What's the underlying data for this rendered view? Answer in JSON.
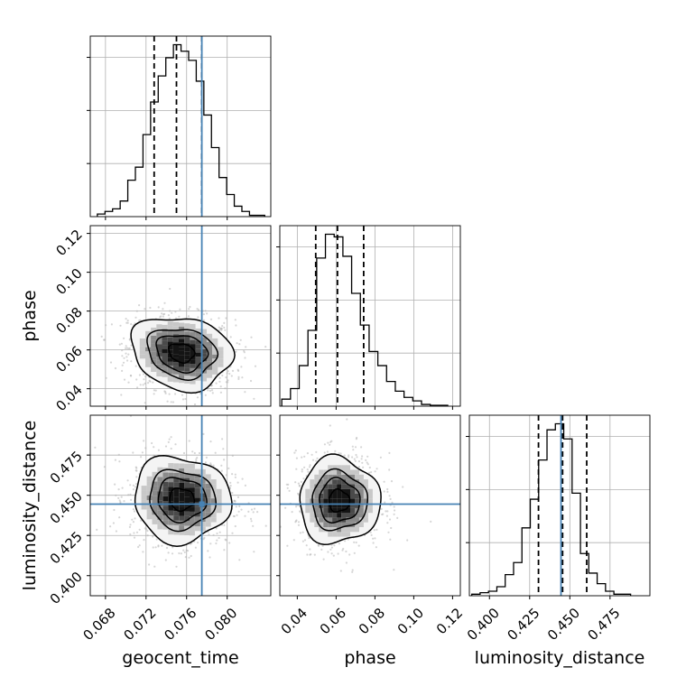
{
  "chart_data": {
    "type": "corner",
    "title": "",
    "parameters": [
      "geocent_time",
      "phase",
      "luminosity_distance"
    ],
    "ranges": {
      "geocent_time": [
        0.0665,
        0.0843
      ],
      "phase": [
        0.031,
        0.124
      ],
      "luminosity_distance": [
        0.3875,
        0.4998
      ]
    },
    "ticks": {
      "geocent_time": [
        "0.068",
        "0.072",
        "0.076",
        "0.080"
      ],
      "phase": [
        "0.04",
        "0.06",
        "0.08",
        "0.10",
        "0.12"
      ],
      "luminosity_distance": [
        "0.400",
        "0.425",
        "0.450",
        "0.475"
      ]
    },
    "truths": {
      "geocent_time": 0.0775,
      "phase": null,
      "luminosity_distance": 0.4445
    },
    "quantiles": {
      "geocent_time": [
        0.0728,
        0.075,
        0.0775
      ],
      "phase": [
        0.0495,
        0.0607,
        0.0742
      ],
      "luminosity_distance": [
        0.4305,
        0.4455,
        0.4605
      ]
    },
    "histograms": {
      "geocent_time": {
        "start": 0.0672,
        "bin_width": 0.00075,
        "counts": [
          2,
          4,
          6,
          12,
          28,
          38,
          63,
          88,
          108,
          122,
          132,
          127,
          120,
          104,
          78,
          53,
          30,
          17,
          8,
          4,
          1,
          1
        ]
      },
      "phase": {
        "start": 0.032,
        "bin_width": 0.0045,
        "counts": [
          8,
          20,
          46,
          86,
          168,
          195,
          192,
          170,
          128,
          92,
          62,
          46,
          28,
          17,
          10,
          6,
          2,
          1,
          1
        ]
      },
      "luminosity_distance": {
        "start": 0.389,
        "bin_width": 0.0052,
        "counts": [
          1,
          2,
          3,
          6,
          14,
          22,
          45,
          64,
          90,
          110,
          114,
          104,
          68,
          28,
          15,
          8,
          3,
          1,
          1
        ]
      }
    },
    "pairs": [
      {
        "x": "geocent_time",
        "y": "phase",
        "mean": [
          0.0755,
          0.0585
        ],
        "std": [
          0.0025,
          0.0095
        ],
        "corr": -0.15,
        "grid": true
      },
      {
        "x": "geocent_time",
        "y": "luminosity_distance",
        "mean": [
          0.0755,
          0.4475
        ],
        "std": [
          0.0024,
          0.0135
        ],
        "corr": -0.05,
        "grid": true
      },
      {
        "x": "phase",
        "y": "luminosity_distance",
        "mean": [
          0.0615,
          0.4465
        ],
        "std": [
          0.0105,
          0.0135
        ],
        "corr": 0.0,
        "grid": false
      }
    ],
    "colors": {
      "hist": "#000000",
      "truth": "#4682b4",
      "grid": "#b0b0b0",
      "points": "#b5b5b5",
      "contour": "#000000"
    }
  }
}
